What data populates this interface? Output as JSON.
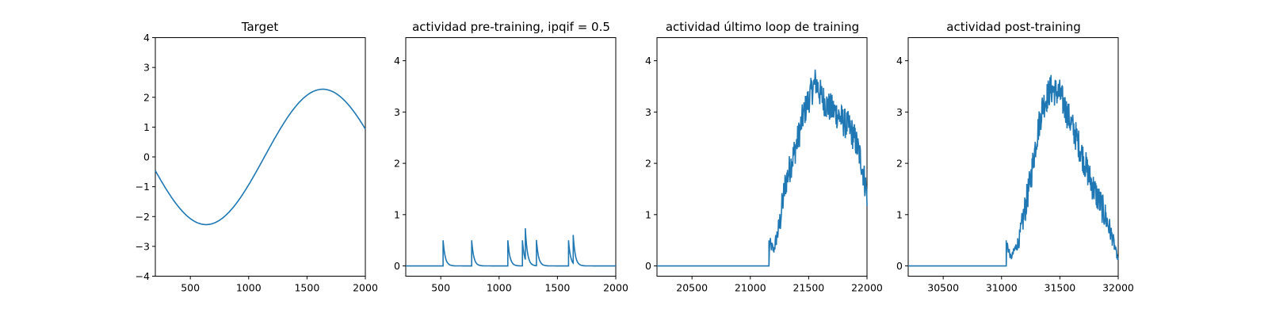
{
  "figure": {
    "background": "#ffffff",
    "line_color": "#1f77b4"
  },
  "chart_data": [
    {
      "type": "line",
      "title": "Target",
      "xlabel": "",
      "ylabel": "",
      "xlim": [
        200,
        2000
      ],
      "ylim": [
        -4,
        4
      ],
      "xticks": [
        500,
        1000,
        1500,
        2000
      ],
      "yticks": [
        -4,
        -3,
        -2,
        -1,
        0,
        1,
        2,
        3,
        4
      ],
      "grid": false,
      "series": [
        {
          "kind": "sine",
          "amplitude": 2.27,
          "period": 2000,
          "peak_x": 1635,
          "x_range": [
            200,
            2000
          ]
        }
      ]
    },
    {
      "type": "line",
      "title": "actividad pre-training, ipqif = 0.5",
      "xlabel": "",
      "ylabel": "",
      "xlim": [
        200,
        2000
      ],
      "ylim": [
        -0.2,
        4.45
      ],
      "xticks": [
        500,
        1000,
        1500,
        2000
      ],
      "yticks": [
        0,
        1,
        2,
        3,
        4
      ],
      "grid": false,
      "series": [
        {
          "kind": "spikes",
          "baseline": 0,
          "decay": 18,
          "x_range": [
            200,
            2000
          ],
          "spikes": [
            {
              "x": 520,
              "h": 0.5
            },
            {
              "x": 765,
              "h": 0.5
            },
            {
              "x": 1075,
              "h": 0.5
            },
            {
              "x": 1200,
              "h": 0.5
            },
            {
              "x": 1225,
              "h": 0.61
            },
            {
              "x": 1320,
              "h": 0.5
            },
            {
              "x": 1595,
              "h": 0.5
            },
            {
              "x": 1635,
              "h": 0.55
            }
          ]
        }
      ]
    },
    {
      "type": "line",
      "title": "actividad último loop de training",
      "xlabel": "",
      "ylabel": "",
      "xlim": [
        20200,
        22000
      ],
      "ylim": [
        -0.2,
        4.45
      ],
      "xticks": [
        20500,
        21000,
        21500,
        22000
      ],
      "yticks": [
        0,
        1,
        2,
        3,
        4
      ],
      "grid": false,
      "series": [
        {
          "kind": "noisy",
          "x_range": [
            20200,
            22000
          ],
          "onset": 21160,
          "onset_height": 0.5,
          "noise": 0.3,
          "envelope": [
            [
              20200,
              0
            ],
            [
              21160,
              0
            ],
            [
              21165,
              0.45
            ],
            [
              21200,
              0.3
            ],
            [
              21250,
              0.8
            ],
            [
              21300,
              1.6
            ],
            [
              21350,
              2.0
            ],
            [
              21400,
              2.4
            ],
            [
              21450,
              2.9
            ],
            [
              21500,
              3.25
            ],
            [
              21560,
              3.6
            ],
            [
              21600,
              3.35
            ],
            [
              21650,
              3.15
            ],
            [
              21700,
              3.05
            ],
            [
              21750,
              2.95
            ],
            [
              21800,
              2.8
            ],
            [
              21850,
              2.7
            ],
            [
              21900,
              2.45
            ],
            [
              21950,
              2.05
            ],
            [
              22000,
              1.4
            ]
          ]
        }
      ]
    },
    {
      "type": "line",
      "title": "actividad post-training",
      "xlabel": "",
      "ylabel": "",
      "xlim": [
        30200,
        32000
      ],
      "ylim": [
        -0.2,
        4.45
      ],
      "xticks": [
        30500,
        31000,
        31500,
        32000
      ],
      "yticks": [
        0,
        1,
        2,
        3,
        4
      ],
      "grid": false,
      "series": [
        {
          "kind": "noisy",
          "x_range": [
            30200,
            32000
          ],
          "onset": 31040,
          "onset_height": 0.5,
          "noise": 0.3,
          "envelope": [
            [
              30200,
              0
            ],
            [
              31040,
              0
            ],
            [
              31045,
              0.45
            ],
            [
              31080,
              0.15
            ],
            [
              31150,
              0.5
            ],
            [
              31200,
              1.1
            ],
            [
              31250,
              1.7
            ],
            [
              31300,
              2.5
            ],
            [
              31350,
              3.1
            ],
            [
              31420,
              3.45
            ],
            [
              31500,
              3.35
            ],
            [
              31550,
              3.05
            ],
            [
              31600,
              2.75
            ],
            [
              31650,
              2.45
            ],
            [
              31700,
              2.1
            ],
            [
              31750,
              1.75
            ],
            [
              31800,
              1.45
            ],
            [
              31850,
              1.2
            ],
            [
              31900,
              0.9
            ],
            [
              31950,
              0.55
            ],
            [
              32000,
              0.1
            ]
          ]
        }
      ]
    }
  ]
}
